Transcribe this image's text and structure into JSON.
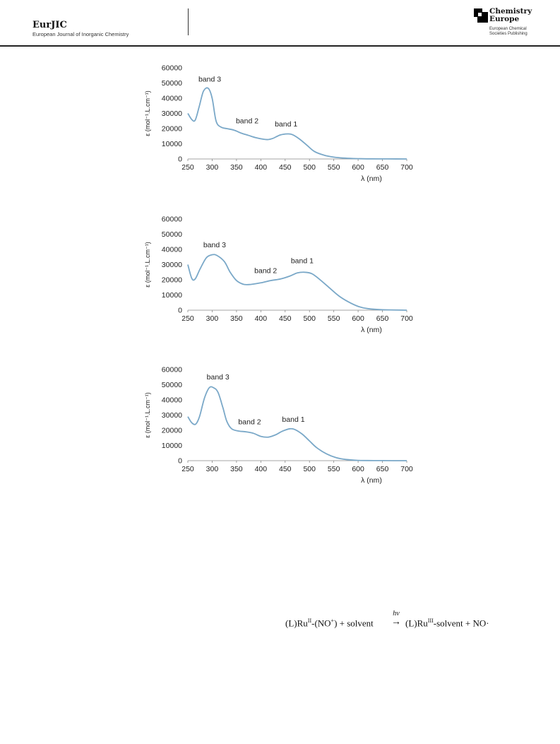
{
  "header": {
    "journal": "EurJIC",
    "journal_full": "European Journal of Inorganic Chemistry",
    "publisher_line1": "Chemistry",
    "publisher_line2": "Europe",
    "publisher_sub1": "European Chemical",
    "publisher_sub2": "Societies Publishing"
  },
  "chart_data": [
    {
      "type": "line",
      "xlabel": "λ (nm)",
      "ylabel": "ε (mol⁻¹.L.cm⁻¹)",
      "xlim": [
        250,
        700
      ],
      "ylim": [
        0,
        60000
      ],
      "xticks": [
        250,
        300,
        350,
        400,
        450,
        500,
        550,
        600,
        650,
        700
      ],
      "yticks": [
        0,
        10000,
        20000,
        30000,
        40000,
        50000,
        60000
      ],
      "color": "#7aa8c8",
      "series": [
        {
          "x": [
            250,
            258,
            265,
            273,
            282,
            292,
            300,
            308,
            318,
            330,
            345,
            360,
            375,
            390,
            405,
            415,
            425,
            440,
            455,
            465,
            480,
            495,
            510,
            530,
            550,
            570,
            590,
            610,
            630,
            660,
            700
          ],
          "y": [
            30000,
            26000,
            25500,
            34000,
            44500,
            46500,
            40000,
            25000,
            21000,
            20000,
            19000,
            17000,
            15500,
            14000,
            13000,
            12800,
            13600,
            15800,
            16500,
            16000,
            13000,
            9000,
            5000,
            2500,
            1200,
            600,
            300,
            150,
            80,
            40,
            0
          ]
        }
      ],
      "annotations": [
        {
          "text": "band 3",
          "x": 295,
          "y": 51000
        },
        {
          "text": "band 2",
          "x": 372,
          "y": 23500
        },
        {
          "text": "band 1",
          "x": 452,
          "y": 21500
        }
      ]
    },
    {
      "type": "line",
      "xlabel": "λ (nm)",
      "ylabel": "ε (mol⁻¹.L.cm⁻¹)",
      "xlim": [
        250,
        700
      ],
      "ylim": [
        0,
        60000
      ],
      "xticks": [
        250,
        300,
        350,
        400,
        450,
        500,
        550,
        600,
        650,
        700
      ],
      "yticks": [
        0,
        10000,
        20000,
        30000,
        40000,
        50000,
        60000
      ],
      "color": "#7aa8c8",
      "series": [
        {
          "x": [
            250,
            258,
            265,
            275,
            288,
            300,
            310,
            325,
            337,
            350,
            365,
            380,
            400,
            420,
            440,
            460,
            475,
            490,
            505,
            520,
            540,
            560,
            580,
            600,
            620,
            650,
            700
          ],
          "y": [
            30000,
            21000,
            20500,
            27000,
            34500,
            36500,
            36000,
            32000,
            25000,
            19500,
            17000,
            17000,
            18000,
            19500,
            20500,
            22500,
            24500,
            25000,
            24000,
            20500,
            15000,
            9500,
            5500,
            2500,
            1000,
            300,
            0
          ]
        }
      ],
      "annotations": [
        {
          "text": "band 3",
          "x": 305,
          "y": 41500
        },
        {
          "text": "band 2",
          "x": 410,
          "y": 24500
        },
        {
          "text": "band 1",
          "x": 485,
          "y": 31000
        }
      ]
    },
    {
      "type": "line",
      "xlabel": "λ (nm)",
      "ylabel": "ε (mol⁻¹.L.cm⁻¹)",
      "xlim": [
        250,
        700
      ],
      "ylim": [
        0,
        60000
      ],
      "xticks": [
        250,
        300,
        350,
        400,
        450,
        500,
        550,
        600,
        650,
        700
      ],
      "yticks": [
        0,
        10000,
        20000,
        30000,
        40000,
        50000,
        60000
      ],
      "color": "#7aa8c8",
      "series": [
        {
          "x": [
            250,
            258,
            266,
            274,
            284,
            294,
            303,
            312,
            322,
            330,
            340,
            355,
            370,
            385,
            400,
            415,
            430,
            445,
            460,
            470,
            485,
            500,
            515,
            535,
            555,
            575,
            600,
            620,
            650,
            700
          ],
          "y": [
            29000,
            25000,
            24000,
            29000,
            41000,
            48000,
            48000,
            45000,
            35000,
            26000,
            21000,
            19500,
            19000,
            18000,
            16000,
            15500,
            17000,
            19500,
            21000,
            20500,
            17500,
            13000,
            8500,
            4500,
            2000,
            800,
            200,
            80,
            30,
            0
          ]
        }
      ],
      "annotations": [
        {
          "text": "band 3",
          "x": 312,
          "y": 53500
        },
        {
          "text": "band 2",
          "x": 377,
          "y": 24000
        },
        {
          "text": "band 1",
          "x": 467,
          "y": 25500
        }
      ]
    }
  ],
  "equation": {
    "left": "(L)Ru",
    "left_sup": "II",
    "left_tail": "-(NO",
    "left_tail_sup": "+",
    "left_tail_end": ") + solvent",
    "hv": "hv",
    "arrow": "→",
    "right": "(L)Ru",
    "right_sup": "III",
    "right_tail": "-solvent + NO·"
  }
}
